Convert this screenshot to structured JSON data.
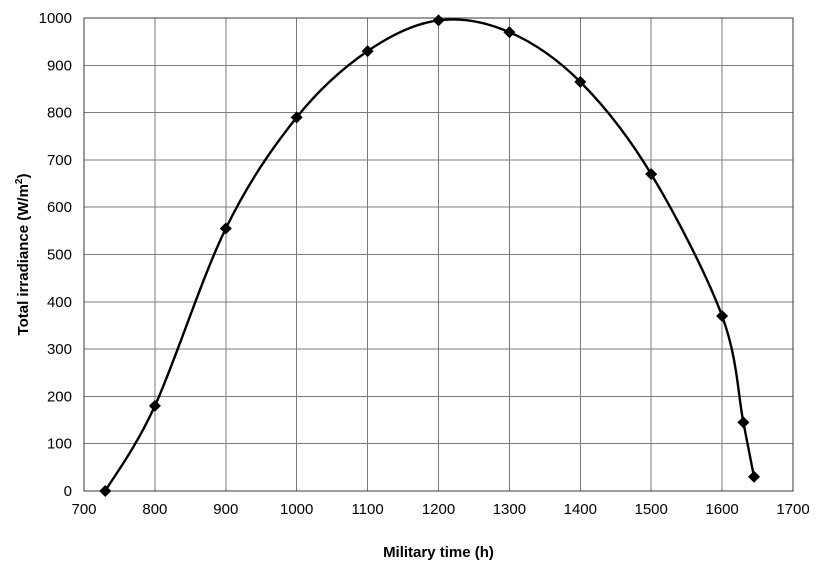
{
  "chart_data": {
    "type": "line",
    "title": "",
    "xlabel": "Military time (h)",
    "ylabel": {
      "prefix": "Total irradiance (W/m",
      "superscript": "2",
      "suffix": ")"
    },
    "xlim": [
      700,
      1700
    ],
    "ylim": [
      0,
      1000
    ],
    "x_ticks": [
      "700",
      "800",
      "900",
      "1000",
      "1100",
      "1200",
      "1300",
      "1400",
      "1500",
      "1600",
      "1700"
    ],
    "y_ticks": [
      "0",
      "100",
      "200",
      "300",
      "400",
      "500",
      "600",
      "700",
      "800",
      "900",
      "1000"
    ],
    "grid": true,
    "legend": "none",
    "marker": "diamond",
    "line_style": "smooth",
    "line_color": "#000000",
    "series": [
      {
        "x": [
          730,
          800,
          900,
          1000,
          1100,
          1200,
          1300,
          1400,
          1500,
          1600,
          1630,
          1645
        ],
        "y": [
          0,
          180,
          555,
          790,
          930,
          995,
          970,
          865,
          670,
          370,
          145,
          30
        ]
      }
    ]
  }
}
